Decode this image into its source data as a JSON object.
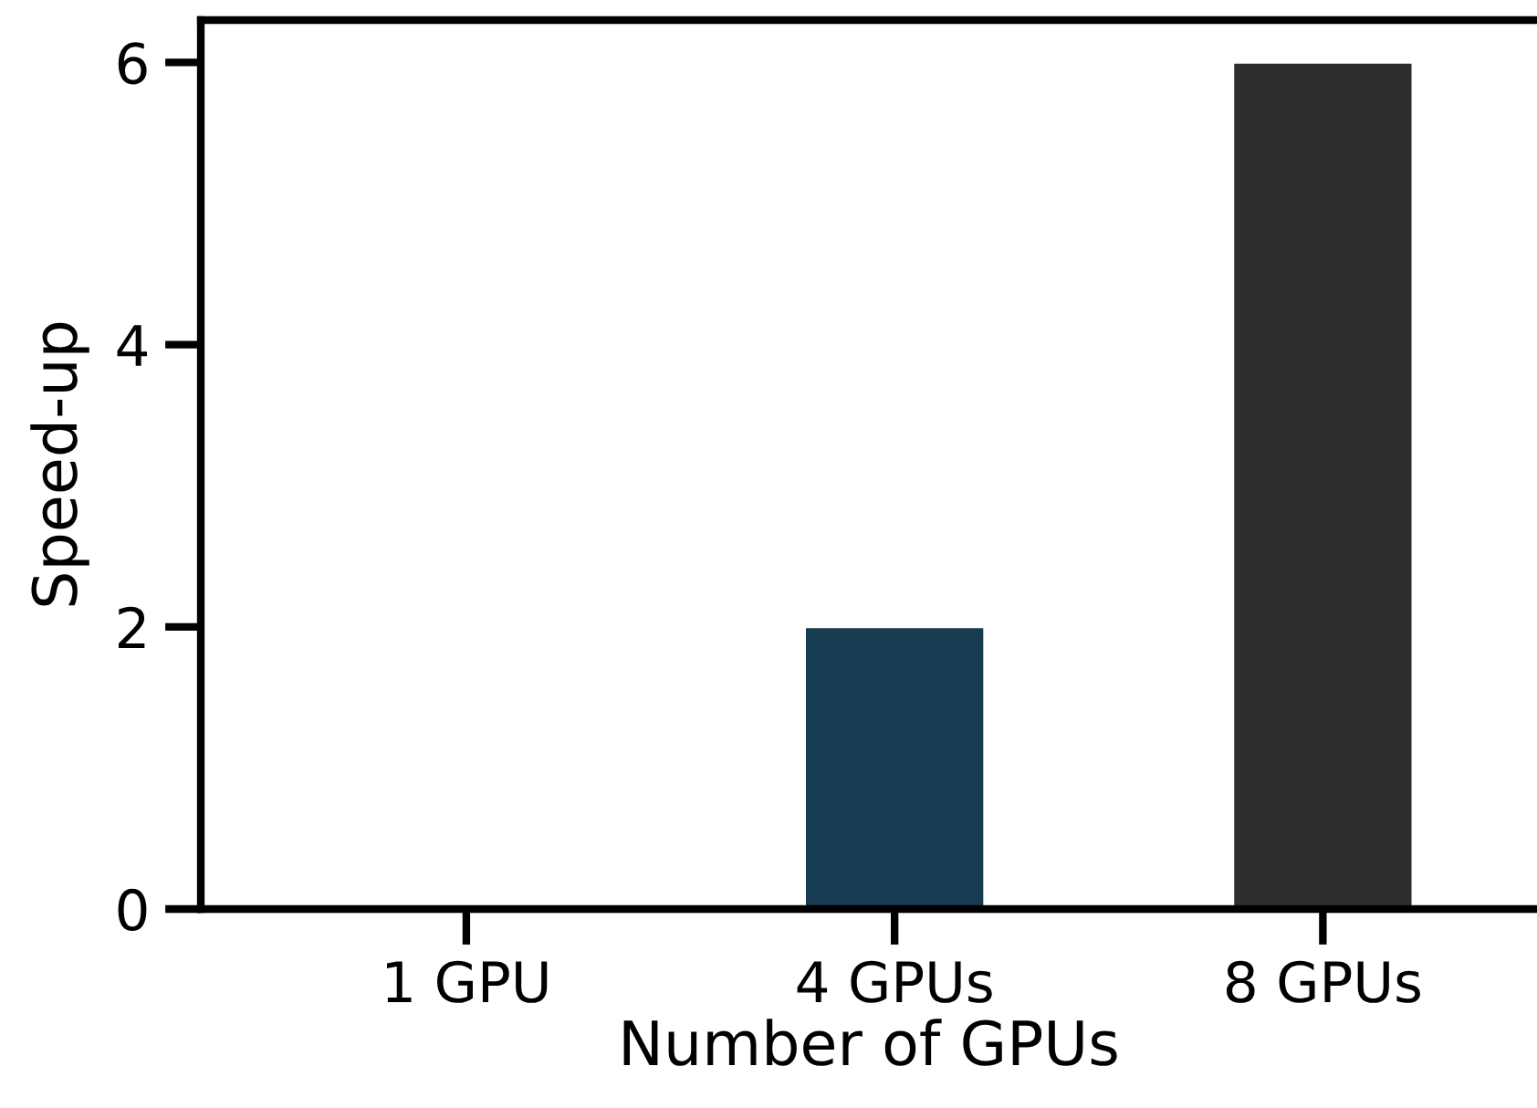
{
  "chart_data": {
    "type": "bar",
    "xlabel": "Number of GPUs",
    "ylabel": "Speed-up",
    "categories": [
      "1 GPU",
      "4 GPUs",
      "8 GPUs"
    ],
    "values": [
      0,
      2,
      6
    ],
    "colors": [
      null,
      "#173b50",
      "#2e2e2e"
    ],
    "ylim": [
      0,
      6.3
    ],
    "yticks": [
      0,
      2,
      4,
      6
    ],
    "grid": false
  }
}
